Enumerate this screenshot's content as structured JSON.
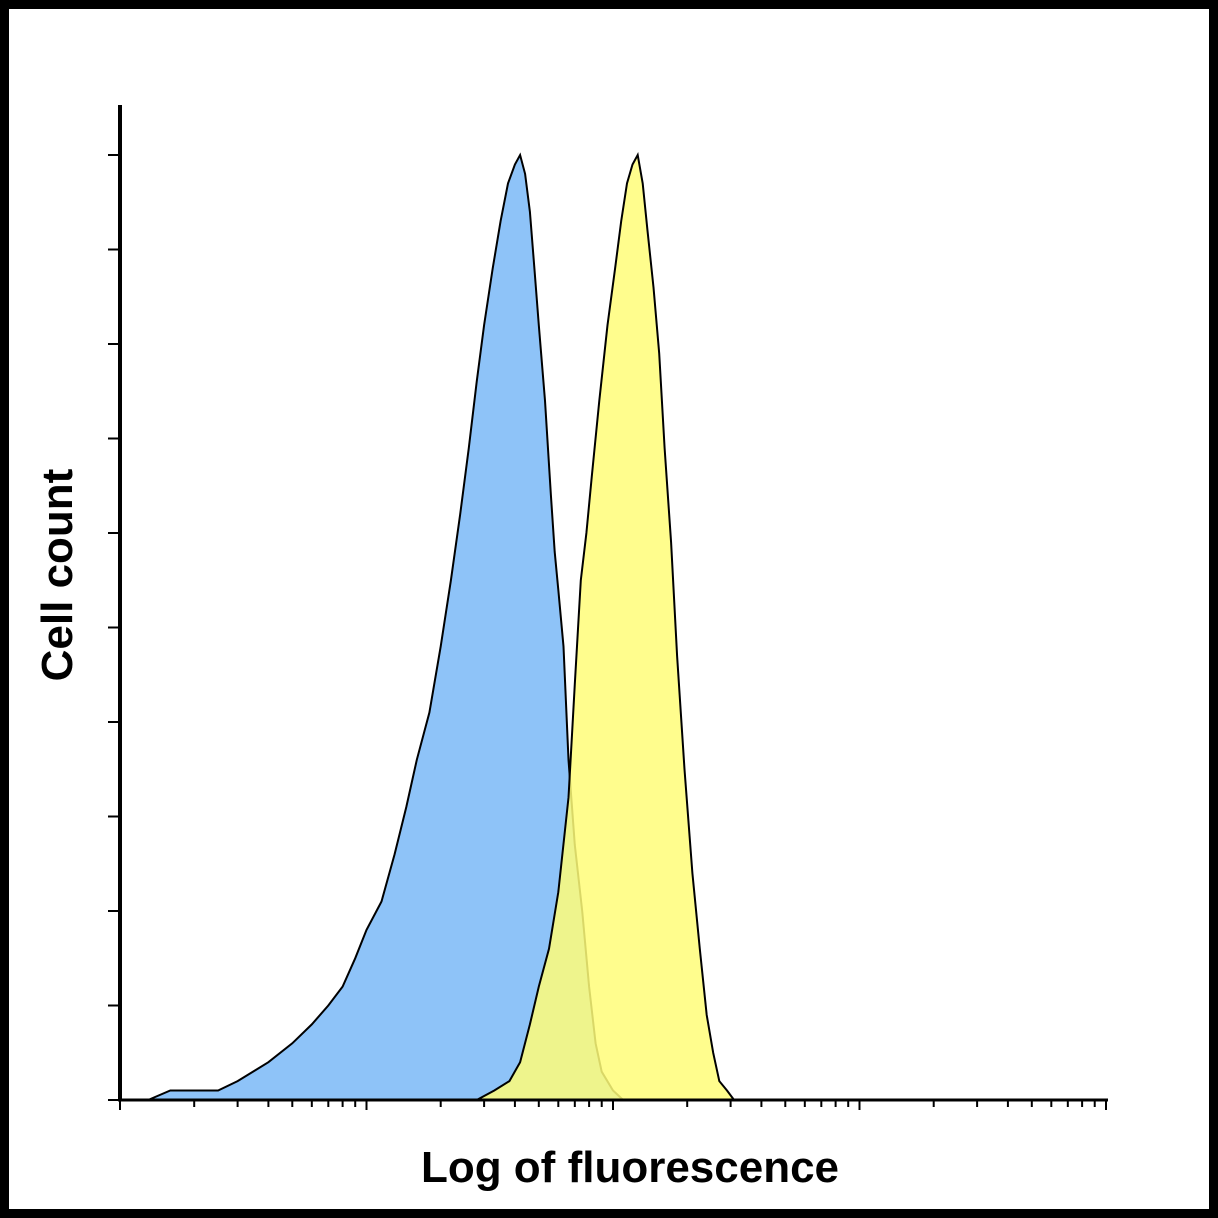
{
  "chart_data": {
    "type": "area",
    "xlabel": "Log of fluorescence",
    "ylabel": "Cell count",
    "x_scale": "log",
    "xlim": [
      1,
      10000
    ],
    "ylim": [
      0,
      100
    ],
    "grid": false,
    "legend": "none",
    "series": [
      {
        "color": "#8ec3f8",
        "points": [
          [
            1.3,
            0
          ],
          [
            1.6,
            1
          ],
          [
            2.0,
            1
          ],
          [
            2.5,
            1
          ],
          [
            3.0,
            2
          ],
          [
            4.0,
            4
          ],
          [
            5.0,
            6
          ],
          [
            6.0,
            8
          ],
          [
            7.0,
            10
          ],
          [
            8.0,
            12
          ],
          [
            9.0,
            15
          ],
          [
            10.0,
            18
          ],
          [
            11.5,
            21
          ],
          [
            13.0,
            26
          ],
          [
            14.5,
            31
          ],
          [
            16.0,
            36
          ],
          [
            18.0,
            41
          ],
          [
            20.0,
            48
          ],
          [
            22.0,
            55
          ],
          [
            24.0,
            62
          ],
          [
            26.0,
            69
          ],
          [
            28.0,
            76
          ],
          [
            30.0,
            82
          ],
          [
            32.5,
            88
          ],
          [
            35.0,
            93
          ],
          [
            37.5,
            97
          ],
          [
            40.0,
            99
          ],
          [
            42.0,
            100
          ],
          [
            44.0,
            98
          ],
          [
            46.0,
            94
          ],
          [
            48.0,
            88
          ],
          [
            50.0,
            82
          ],
          [
            53.0,
            74
          ],
          [
            56.0,
            64
          ],
          [
            58.0,
            58
          ],
          [
            60.0,
            54
          ],
          [
            63.0,
            48
          ],
          [
            66.0,
            36
          ],
          [
            70.0,
            27
          ],
          [
            75.0,
            20
          ],
          [
            80.0,
            12
          ],
          [
            85.0,
            6
          ],
          [
            90.0,
            3
          ],
          [
            100.0,
            1
          ],
          [
            110.0,
            0
          ]
        ]
      },
      {
        "color": "#fffd79",
        "points": [
          [
            28.0,
            0
          ],
          [
            33.0,
            1
          ],
          [
            38.0,
            2
          ],
          [
            42.0,
            4
          ],
          [
            46.0,
            8
          ],
          [
            50.0,
            12
          ],
          [
            55.0,
            16
          ],
          [
            60.0,
            22
          ],
          [
            66.0,
            32
          ],
          [
            70.0,
            44
          ],
          [
            74.0,
            55
          ],
          [
            78.0,
            60
          ],
          [
            82.0,
            66
          ],
          [
            88.0,
            74
          ],
          [
            95.0,
            82
          ],
          [
            102.0,
            88
          ],
          [
            108.0,
            93
          ],
          [
            114.0,
            97
          ],
          [
            120.0,
            99
          ],
          [
            126.0,
            100
          ],
          [
            132.0,
            97
          ],
          [
            138.0,
            92
          ],
          [
            146.0,
            86
          ],
          [
            154.0,
            79
          ],
          [
            162.0,
            69
          ],
          [
            172.0,
            59
          ],
          [
            182.0,
            47
          ],
          [
            195.0,
            35
          ],
          [
            210.0,
            24
          ],
          [
            225.0,
            16
          ],
          [
            240.0,
            9
          ],
          [
            255.0,
            5
          ],
          [
            270.0,
            2
          ],
          [
            290.0,
            1
          ],
          [
            310.0,
            0
          ]
        ]
      }
    ]
  }
}
